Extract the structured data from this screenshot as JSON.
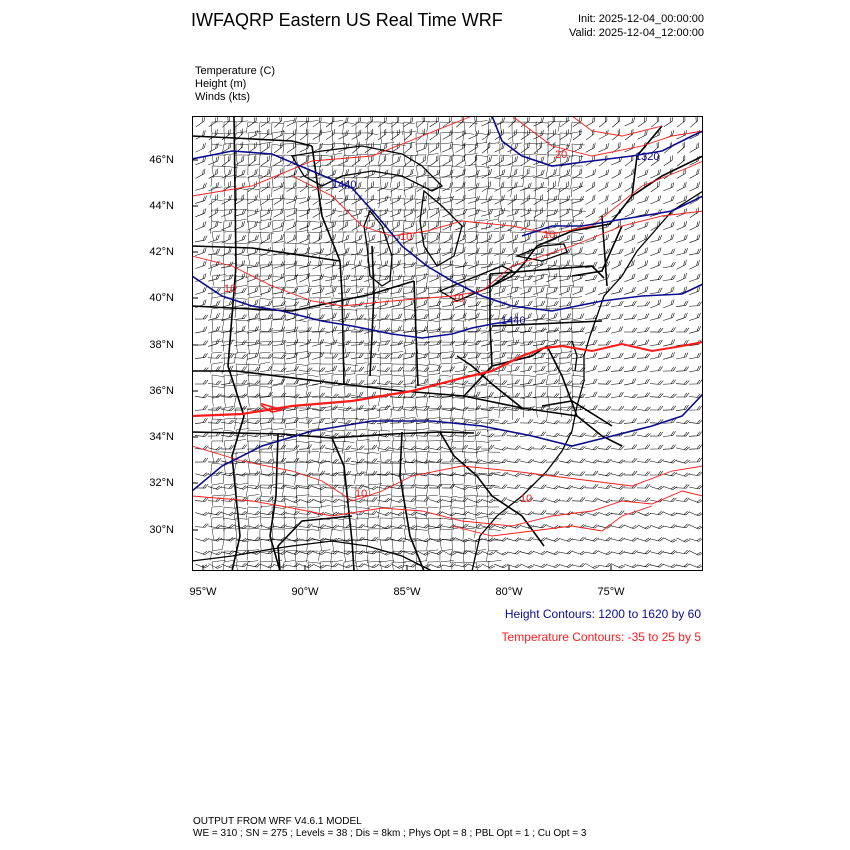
{
  "header": {
    "title": "IWFAQRP Eastern US Real Time WRF",
    "init": "Init: 2025-12-04_00:00:00",
    "valid": "Valid: 2025-12-04_12:00:00"
  },
  "fields": {
    "temperature": "Temperature   (C)",
    "height": "Height   (m)",
    "winds": "Winds   (kts)"
  },
  "axes": {
    "lat_labels": [
      "46°N",
      "44°N",
      "42°N",
      "40°N",
      "38°N",
      "36°N",
      "34°N",
      "32°N",
      "30°N"
    ],
    "lon_labels": [
      "95°W",
      "90°W",
      "85°W",
      "80°W",
      "75°W"
    ]
  },
  "contour_labels": {
    "height": [
      "1440",
      "1320",
      "1440"
    ],
    "temperature": [
      "20",
      "10",
      "10",
      "10",
      "10",
      "10",
      "10"
    ]
  },
  "legend": {
    "height": "Height Contours: 1200 to 1620 by 60",
    "temperature": "Temperature Contours: -35 to 25 by 5"
  },
  "colors": {
    "height_contour": "#0b0b8f",
    "temperature_contour": "#ff1a1a",
    "borders": "#000000"
  },
  "footer": {
    "model": "OUTPUT FROM WRF V4.6.1 MODEL",
    "config": "WE = 310 ; SN = 275 ; Levels = 38 ; Dis = 8km ; Phys Opt = 8 ; PBL Opt = 1 ; Cu Opt = 3"
  }
}
